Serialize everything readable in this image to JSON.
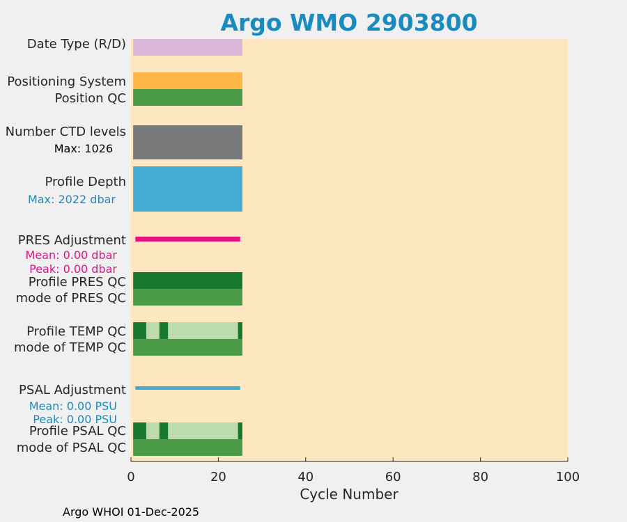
{
  "title": "Argo WMO 2903800",
  "footer": "Argo WHOI 01-Dec-2025",
  "colors": {
    "background": "#f0f0f0",
    "plot_bg": "#fde7c0",
    "title": "#1a8bbf",
    "date_type": "#dbb8da",
    "positioning": "#fdb645",
    "good_qc": "#4a9a48",
    "qc_good_dark": "#16772d",
    "qc_light": "#bcdcae",
    "ctd": "#797979",
    "depth": "#44abd1",
    "pres_adj": "#e8127d",
    "psal_adj": "#44abd1",
    "pres_text": "#e0108a",
    "psal_text": "#1a8bbf",
    "depth_text": "#1a8bbf"
  },
  "chart_data": {
    "type": "bar",
    "title": "Argo WMO 2903800",
    "xlabel": "Cycle Number",
    "xlim": [
      0,
      100
    ],
    "xticks": [
      "0",
      "20",
      "40",
      "60",
      "80",
      "100"
    ],
    "grid": false,
    "rows": [
      {
        "label": "Date Type (R/D)",
        "segments": [
          {
            "x0": 0.5,
            "x1": 25.5,
            "color": "date_type"
          }
        ]
      },
      {
        "label": "Positioning System",
        "segments": [
          {
            "x0": 0.5,
            "x1": 25.5,
            "color": "positioning"
          }
        ]
      },
      {
        "label": "Position QC",
        "segments": [
          {
            "x0": 0.5,
            "x1": 25.5,
            "color": "good_qc"
          }
        ]
      },
      {
        "label": "Number CTD levels",
        "annotation": "Max: 1026",
        "segments": [
          {
            "x0": 0.5,
            "x1": 25.5,
            "color": "ctd"
          }
        ]
      },
      {
        "label": "Profile Depth",
        "annotation": "Max: 2022 dbar",
        "segments": [
          {
            "x0": 0.5,
            "x1": 25.5,
            "color": "depth"
          }
        ]
      },
      {
        "label": "PRES Adjustment",
        "annotations": [
          "Mean: 0.00 dbar",
          "Peak: 0.00 dbar"
        ],
        "segments": [
          {
            "x0": 1,
            "x1": 25,
            "color": "pres_adj"
          }
        ]
      },
      {
        "label": "Profile PRES QC",
        "segments": [
          {
            "x0": 0.5,
            "x1": 25.5,
            "color": "qc_good_dark"
          }
        ]
      },
      {
        "label": "mode of PRES QC",
        "segments": [
          {
            "x0": 0.5,
            "x1": 25.5,
            "color": "good_qc"
          }
        ]
      },
      {
        "label": "Profile TEMP QC",
        "segments": [
          {
            "x0": 0.5,
            "x1": 3.5,
            "color": "qc_good_dark"
          },
          {
            "x0": 3.5,
            "x1": 6.5,
            "color": "qc_light"
          },
          {
            "x0": 6.5,
            "x1": 8.5,
            "color": "qc_good_dark"
          },
          {
            "x0": 8.5,
            "x1": 24.5,
            "color": "qc_light"
          },
          {
            "x0": 24.5,
            "x1": 25.5,
            "color": "qc_good_dark"
          }
        ]
      },
      {
        "label": "mode of TEMP QC",
        "segments": [
          {
            "x0": 0.5,
            "x1": 25.5,
            "color": "good_qc"
          }
        ]
      },
      {
        "label": "PSAL Adjustment",
        "annotations": [
          "Mean: 0.00 PSU",
          "Peak: 0.00 PSU"
        ],
        "segments": [
          {
            "x0": 1,
            "x1": 25,
            "color": "psal_adj"
          }
        ]
      },
      {
        "label": "Profile PSAL QC",
        "segments": [
          {
            "x0": 0.5,
            "x1": 3.5,
            "color": "qc_good_dark"
          },
          {
            "x0": 3.5,
            "x1": 6.5,
            "color": "qc_light"
          },
          {
            "x0": 6.5,
            "x1": 8.5,
            "color": "qc_good_dark"
          },
          {
            "x0": 8.5,
            "x1": 24.5,
            "color": "qc_light"
          },
          {
            "x0": 24.5,
            "x1": 25.5,
            "color": "qc_good_dark"
          }
        ]
      },
      {
        "label": "mode of PSAL QC",
        "segments": [
          {
            "x0": 0.5,
            "x1": 25.5,
            "color": "good_qc"
          }
        ]
      }
    ]
  }
}
